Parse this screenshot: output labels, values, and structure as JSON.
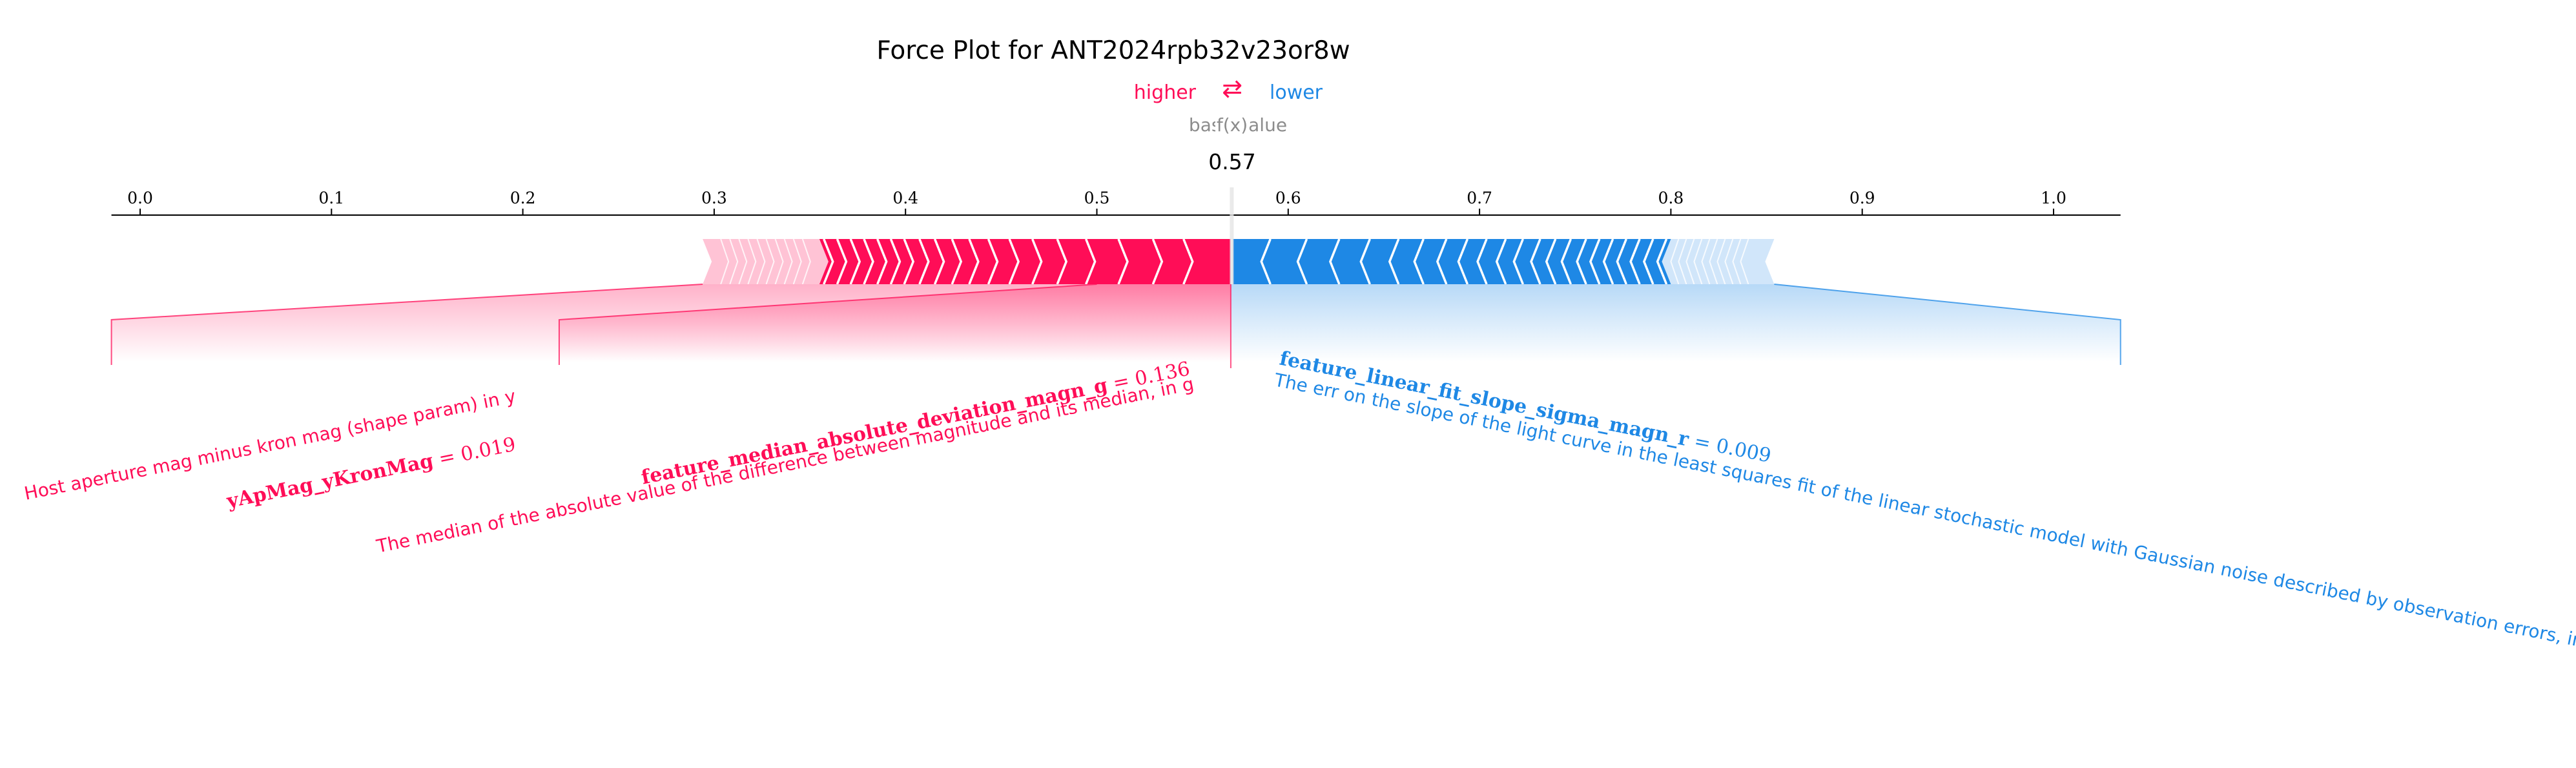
{
  "chart_data": {
    "type": "force",
    "title": "Force Plot for ANT2024rpb32v23or8w",
    "legend": {
      "higher": "higher",
      "arrows": "⇄",
      "lower": "lower",
      "placement": "top-center"
    },
    "base_value_label": "base value",
    "fx_label": "f(x)",
    "fx_value": 0.57,
    "fx_value_text": "0.57",
    "xlim": [
      -0.015,
      1.035
    ],
    "ticks": [
      {
        "v": 0.0,
        "label": "0.0"
      },
      {
        "v": 0.1,
        "label": "0.1"
      },
      {
        "v": 0.2,
        "label": "0.2"
      },
      {
        "v": 0.3,
        "label": "0.3"
      },
      {
        "v": 0.4,
        "label": "0.4"
      },
      {
        "v": 0.5,
        "label": "0.5"
      },
      {
        "v": 0.6,
        "label": "0.6"
      },
      {
        "v": 0.7,
        "label": "0.7"
      },
      {
        "v": 0.8,
        "label": "0.8"
      },
      {
        "v": 0.9,
        "label": "0.9"
      },
      {
        "v": 1.0,
        "label": "1.0"
      }
    ],
    "colors": {
      "positive": "#ff0d57",
      "positive_light": "#ffc3d5",
      "negative": "#1e88e5",
      "negative_light": "#d1e6fa"
    },
    "positive_range": [
      0.294,
      0.57
    ],
    "negative_range": [
      0.57,
      0.854
    ],
    "positive_strong_start": 0.355,
    "negative_strong_end": 0.8,
    "positive_chevrons": [
      0.36,
      0.367,
      0.374,
      0.381,
      0.388,
      0.395,
      0.402,
      0.41,
      0.418,
      0.427,
      0.436,
      0.446,
      0.457,
      0.469,
      0.482,
      0.497,
      0.514,
      0.532,
      0.548
    ],
    "negative_chevrons": [
      0.588,
      0.607,
      0.624,
      0.64,
      0.655,
      0.668,
      0.68,
      0.691,
      0.701,
      0.711,
      0.72,
      0.729,
      0.737,
      0.745,
      0.753,
      0.76,
      0.767,
      0.774,
      0.781,
      0.788,
      0.795
    ],
    "features": [
      {
        "side": "positive",
        "name": "yApMag_yKronMag",
        "value_text": " = 0.019",
        "description": "Host aperture mag minus kron mag (shape param) in y",
        "connector_value": 0.294,
        "drop_value": -0.015
      },
      {
        "side": "positive",
        "name": "feature_median_absolute_deviation_magn_g",
        "value_text": " = 0.136",
        "description": "The median of the absolute value of the difference between magnitude and its median, in g",
        "connector_value": 0.5,
        "drop_value": 0.219
      },
      {
        "side": "negative",
        "name": "feature_linear_fit_slope_sigma_magn_r",
        "value_text": " = 0.009",
        "description": "The err on the slope of the light curve in the least squares fit of the linear stochastic model with Gaussian noise described by observation errors, in r",
        "connector_value": 0.854,
        "drop_value": 1.035
      }
    ]
  }
}
